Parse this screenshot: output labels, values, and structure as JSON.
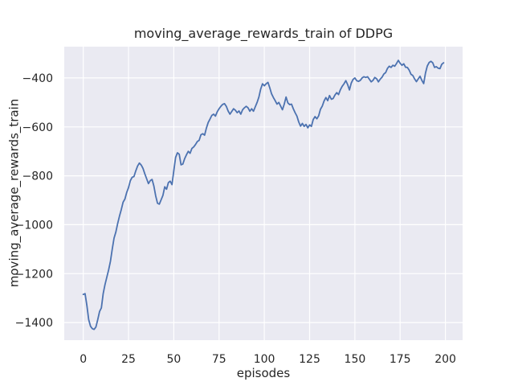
{
  "figure": {
    "background": "#ffffff"
  },
  "chart_data": {
    "type": "line",
    "title": "moving_average_rewards_train of DDPG",
    "xlabel": "episodes",
    "ylabel": "moving_average_rewards_train",
    "legend": null,
    "grid": true,
    "line_color": "#4c72b0",
    "axes_bg": "#eaeaf2",
    "grid_color": "#ffffff",
    "text_color": "#262626",
    "xlim": [
      -10.5,
      209.5
    ],
    "ylim": [
      -1472,
      -272
    ],
    "xticks": [
      0,
      25,
      50,
      75,
      100,
      125,
      150,
      175,
      200
    ],
    "yticks": [
      -400,
      -600,
      -800,
      -1000,
      -1200,
      -1400
    ],
    "x_start": 0,
    "x_step": 1,
    "values": [
      -1285,
      -1282,
      -1330,
      -1388,
      -1415,
      -1425,
      -1428,
      -1418,
      -1388,
      -1355,
      -1340,
      -1282,
      -1245,
      -1215,
      -1185,
      -1150,
      -1100,
      -1055,
      -1030,
      -995,
      -965,
      -938,
      -908,
      -895,
      -868,
      -848,
      -820,
      -806,
      -803,
      -780,
      -760,
      -748,
      -756,
      -770,
      -792,
      -812,
      -832,
      -820,
      -815,
      -842,
      -882,
      -912,
      -916,
      -898,
      -880,
      -845,
      -855,
      -828,
      -822,
      -836,
      -780,
      -725,
      -706,
      -712,
      -755,
      -752,
      -730,
      -714,
      -700,
      -708,
      -688,
      -682,
      -672,
      -660,
      -655,
      -632,
      -628,
      -634,
      -605,
      -582,
      -568,
      -553,
      -548,
      -556,
      -538,
      -526,
      -516,
      -508,
      -505,
      -516,
      -535,
      -548,
      -537,
      -526,
      -532,
      -542,
      -535,
      -548,
      -530,
      -522,
      -516,
      -522,
      -536,
      -526,
      -536,
      -518,
      -500,
      -478,
      -445,
      -424,
      -432,
      -424,
      -418,
      -440,
      -465,
      -480,
      -493,
      -507,
      -500,
      -515,
      -530,
      -507,
      -478,
      -502,
      -509,
      -507,
      -526,
      -542,
      -556,
      -580,
      -597,
      -586,
      -598,
      -590,
      -604,
      -592,
      -598,
      -570,
      -558,
      -567,
      -555,
      -528,
      -515,
      -494,
      -480,
      -493,
      -472,
      -487,
      -484,
      -470,
      -460,
      -468,
      -448,
      -434,
      -424,
      -411,
      -427,
      -449,
      -421,
      -406,
      -400,
      -411,
      -414,
      -410,
      -400,
      -395,
      -398,
      -395,
      -405,
      -416,
      -410,
      -398,
      -403,
      -416,
      -405,
      -397,
      -384,
      -378,
      -361,
      -352,
      -357,
      -348,
      -352,
      -341,
      -328,
      -340,
      -348,
      -342,
      -356,
      -357,
      -368,
      -385,
      -390,
      -404,
      -415,
      -404,
      -393,
      -410,
      -423,
      -380,
      -351,
      -337,
      -332,
      -338,
      -357,
      -354,
      -360,
      -362,
      -344,
      -338
    ]
  }
}
